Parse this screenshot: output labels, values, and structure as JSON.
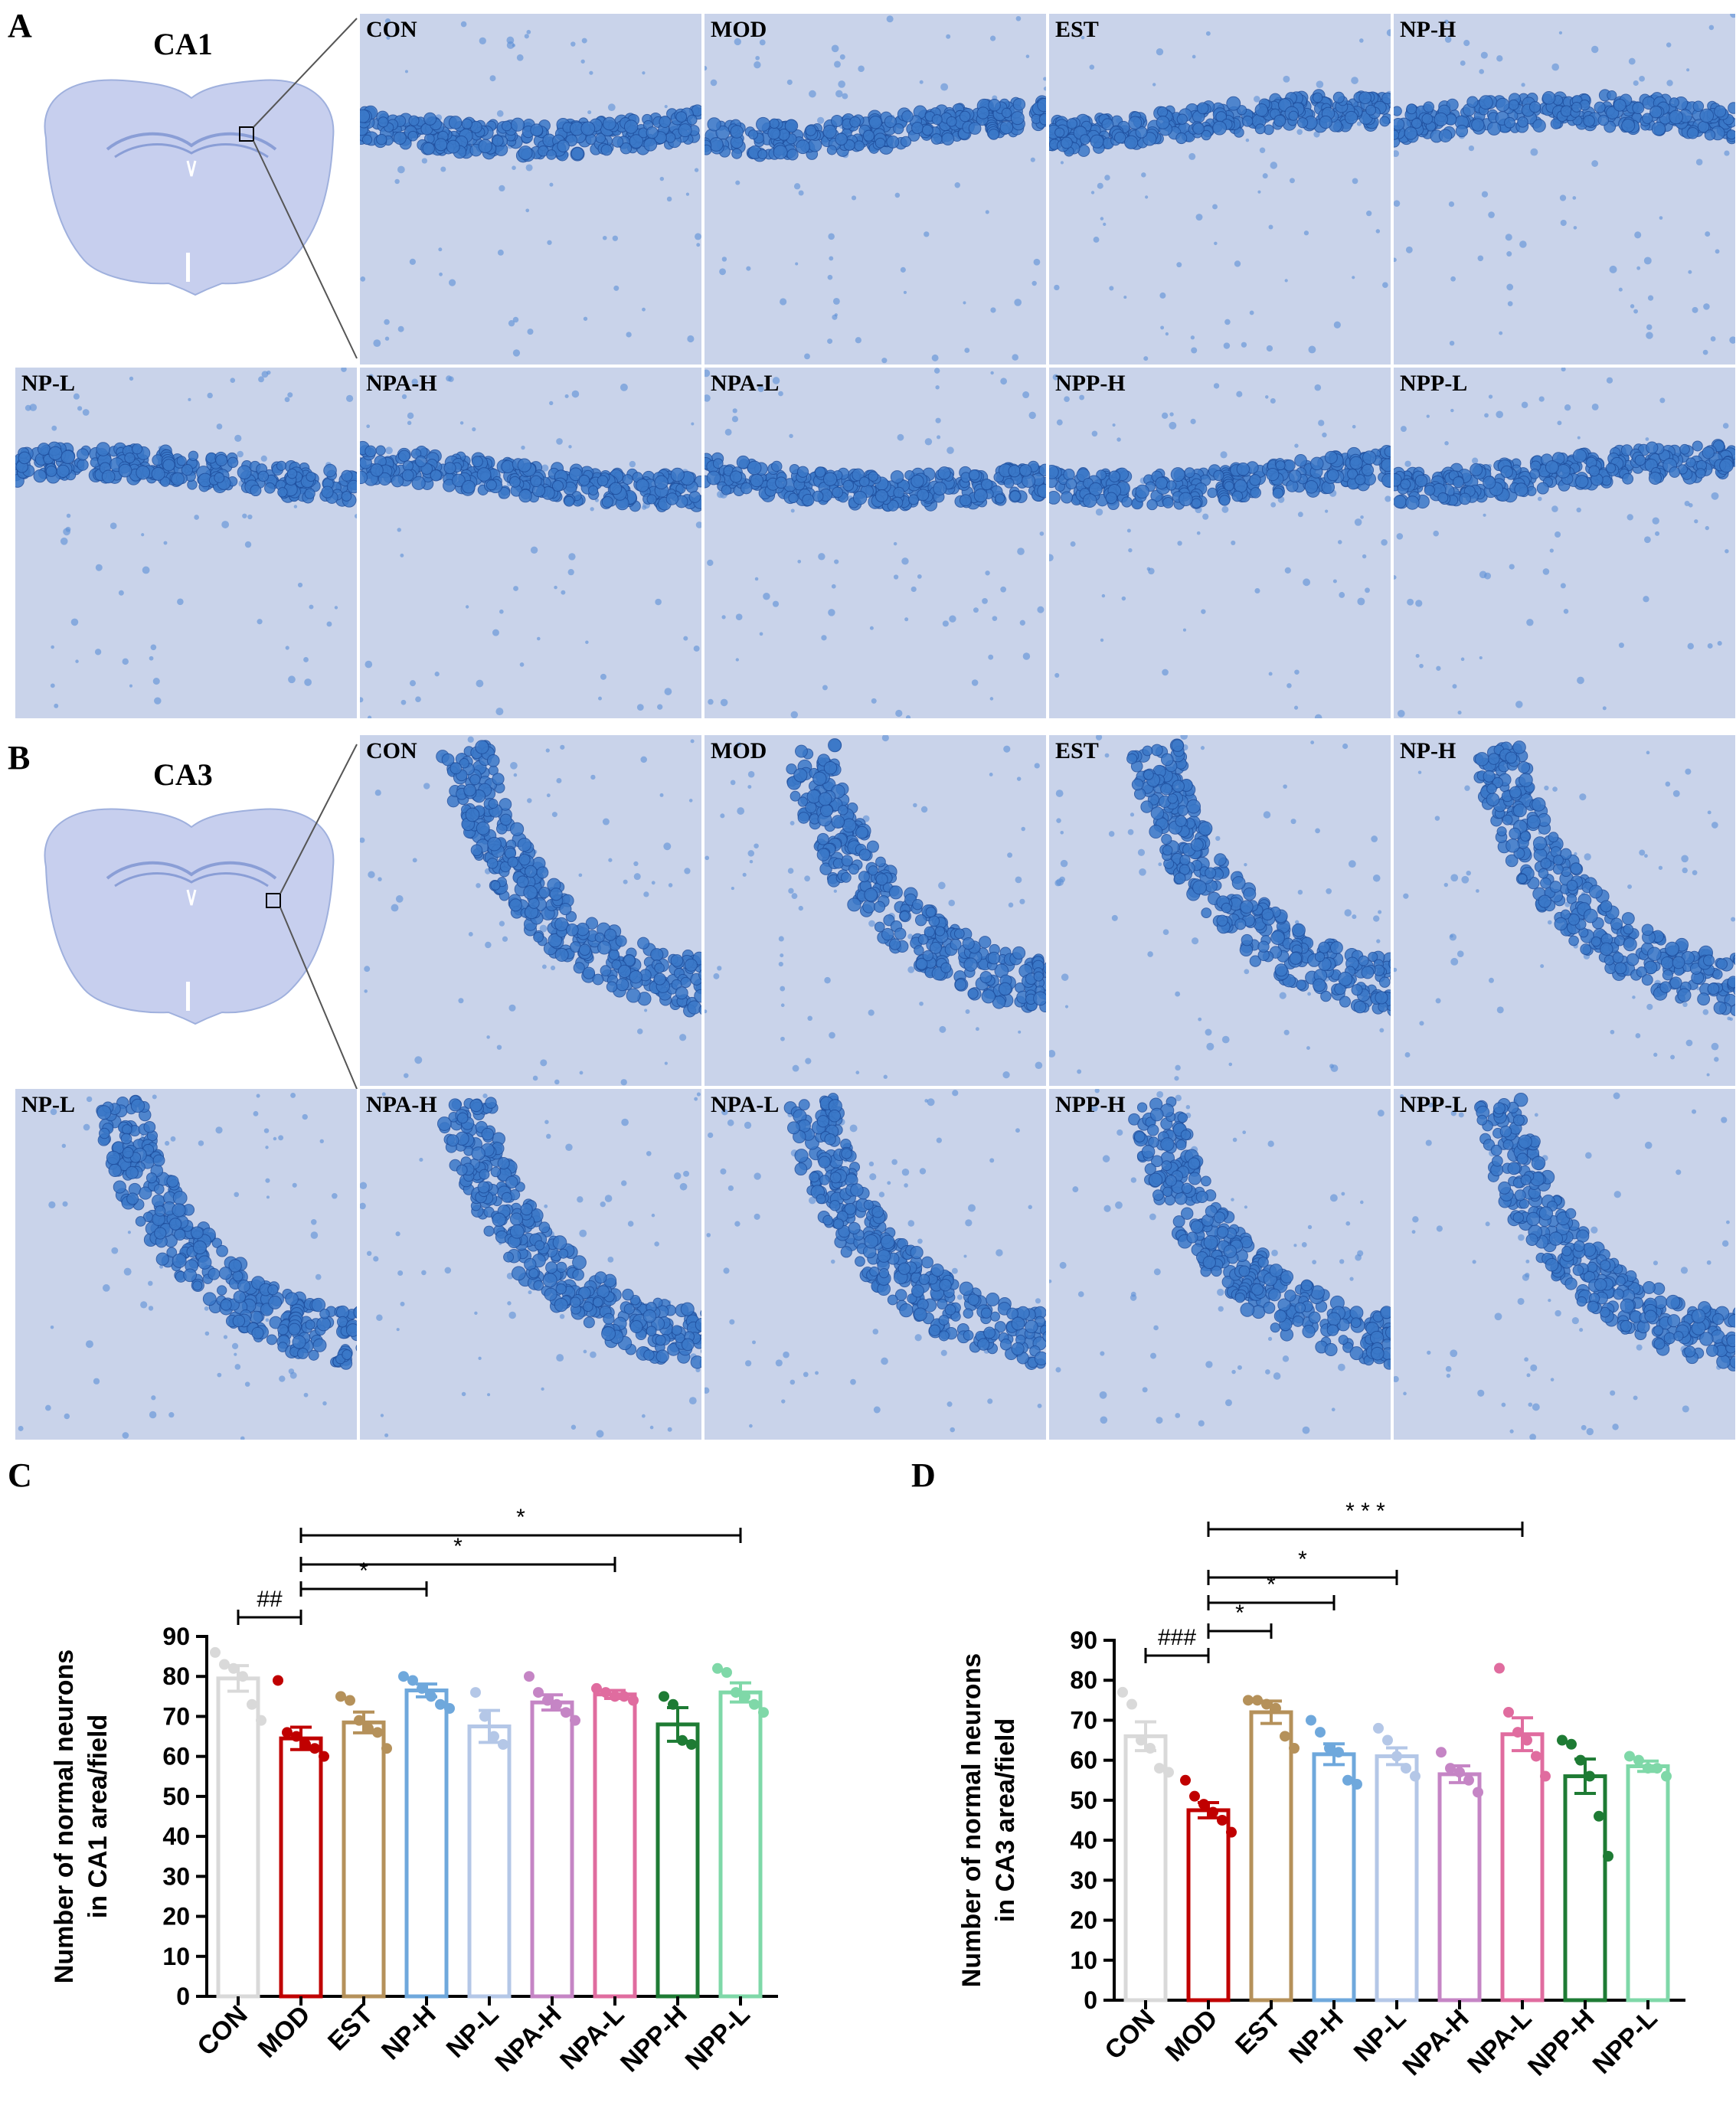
{
  "panels": {
    "A": {
      "letter": "A",
      "region": "CA1"
    },
    "B": {
      "letter": "B",
      "region": "CA3"
    },
    "C": {
      "letter": "C"
    },
    "D": {
      "letter": "D"
    }
  },
  "micrograph_labels": [
    "CON",
    "MOD",
    "EST",
    "NP-H",
    "NP-L",
    "NPA-H",
    "NPA-L",
    "NPP-H",
    "NPP-L"
  ],
  "colors": {
    "CON": "#d9d9d9",
    "MOD": "#c00000",
    "EST": "#b5915a",
    "NP-H": "#6fa8dc",
    "NP-L": "#b4c7e7",
    "NPA-H": "#c585c5",
    "NPA-L": "#e06c9f",
    "NPP-H": "#1e7b34",
    "NPP-L": "#7fd8a8",
    "tissue_bg": "#c9d3ea",
    "cell_layer": "#3a78c8"
  },
  "chart_data": [
    {
      "type": "bar",
      "categories": [
        "CON",
        "MOD",
        "EST",
        "NP-H",
        "NP-L",
        "NPA-H",
        "NPA-L",
        "NPP-H",
        "NPP-L"
      ],
      "values": [
        79.5,
        64.5,
        68.5,
        76.5,
        67.5,
        73.5,
        75.5,
        68,
        76
      ],
      "sem": [
        3.2,
        2.8,
        2.6,
        1.6,
        4,
        1.9,
        1,
        4.2,
        2.4
      ],
      "points": [
        [
          86,
          83,
          82,
          80,
          73,
          69
        ],
        [
          79,
          66,
          65,
          63,
          62,
          60
        ],
        [
          75,
          74,
          69,
          67,
          66,
          62
        ],
        [
          80,
          79,
          77,
          75,
          73,
          72
        ],
        [
          76,
          70,
          65,
          63
        ],
        [
          80,
          76,
          74,
          73,
          71,
          69
        ],
        [
          77,
          76,
          75,
          75,
          74
        ],
        [
          75,
          73,
          64,
          63
        ],
        [
          82,
          81,
          76,
          75,
          73,
          71
        ]
      ],
      "xlabel": "",
      "ylabel": "Number of normal neurons in CA1 area/field",
      "ylabel_lines": [
        "Number of normal neurons",
        "in CA1 area/field"
      ],
      "ylim": [
        0,
        90
      ],
      "yticks": [
        "0",
        "10",
        "20",
        "30",
        "40",
        "50",
        "60",
        "70",
        "80",
        "90"
      ],
      "significance": [
        {
          "from": "CON",
          "to": "MOD",
          "label": "##"
        },
        {
          "from": "MOD",
          "to": "NP-H",
          "label": "*"
        },
        {
          "from": "MOD",
          "to": "NPA-L",
          "label": "*"
        },
        {
          "from": "MOD",
          "to": "NPP-L",
          "label": "*"
        }
      ]
    },
    {
      "type": "bar",
      "categories": [
        "CON",
        "MOD",
        "EST",
        "NP-H",
        "NP-L",
        "NPA-H",
        "NPA-L",
        "NPP-H",
        "NPP-L"
      ],
      "values": [
        66,
        47.5,
        72,
        61.5,
        61,
        56.5,
        66.5,
        56,
        58.5
      ],
      "sem": [
        3.6,
        1.9,
        2.8,
        2.6,
        2.1,
        2.1,
        4.1,
        4.3,
        1.3
      ],
      "points": [
        [
          77,
          74,
          65,
          63,
          58,
          57
        ],
        [
          55,
          51,
          49,
          47,
          45,
          42
        ],
        [
          75,
          75,
          74,
          73,
          66,
          63
        ],
        [
          70,
          67,
          63,
          62,
          55,
          54
        ],
        [
          68,
          65,
          61,
          58,
          56
        ],
        [
          62,
          58,
          57,
          55,
          52
        ],
        [
          83,
          72,
          67,
          65,
          61,
          56
        ],
        [
          65,
          64,
          60,
          56,
          46,
          36
        ],
        [
          61,
          60,
          58,
          58,
          56
        ]
      ],
      "xlabel": "",
      "ylabel": "Number of normal neurons in CA3 area/field",
      "ylabel_lines": [
        "Number of normal neurons",
        "in CA3 area/field"
      ],
      "ylim": [
        0,
        90
      ],
      "yticks": [
        "0",
        "10",
        "20",
        "30",
        "40",
        "50",
        "60",
        "70",
        "80",
        "90"
      ],
      "significance": [
        {
          "from": "CON",
          "to": "MOD",
          "label": "###"
        },
        {
          "from": "MOD",
          "to": "EST",
          "label": "*"
        },
        {
          "from": "MOD",
          "to": "NP-H",
          "label": "*"
        },
        {
          "from": "MOD",
          "to": "NP-L",
          "label": "*"
        },
        {
          "from": "MOD",
          "to": "NPA-L",
          "label": "* * *"
        }
      ]
    }
  ]
}
